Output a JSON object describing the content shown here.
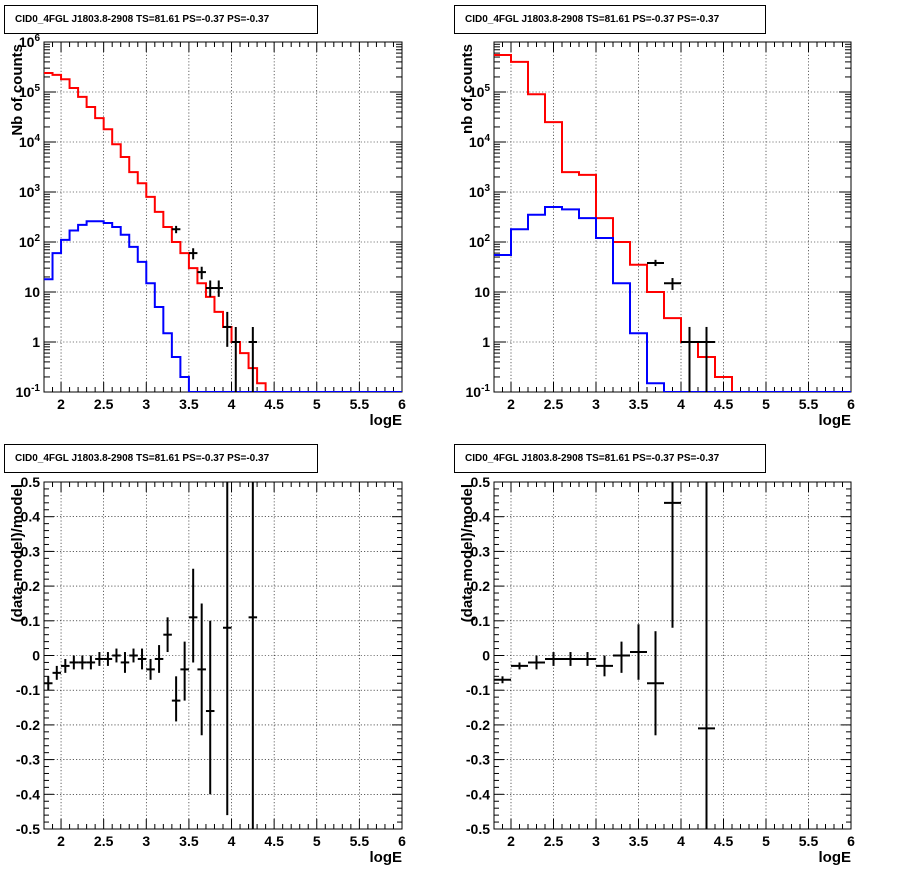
{
  "chart_data": [
    {
      "type": "histogram",
      "title": "CID0_4FGL J1803.8-2908 TS=81.61 PS=-0.37 PS=-0.37",
      "xlabel": "logE",
      "ylabel": "Nb of counts",
      "yscale": "log",
      "xlim": [
        1.8,
        6.0
      ],
      "ylim": [
        0.1,
        1000000
      ],
      "xticks": [
        "2",
        "2.5",
        "3",
        "3.5",
        "4",
        "4.5",
        "5",
        "5.5",
        "6"
      ],
      "yticks": [
        "10^-1",
        "1",
        "10",
        "10^2",
        "10^3",
        "10^4",
        "10^5",
        "10^6"
      ],
      "grid": true,
      "bin_edges": [
        1.8,
        1.9,
        2.0,
        2.1,
        2.2,
        2.3,
        2.4,
        2.5,
        2.6,
        2.7,
        2.8,
        2.9,
        3.0,
        3.1,
        3.2,
        3.3,
        3.4,
        3.5,
        3.6,
        3.7,
        3.8,
        3.9,
        4.0,
        4.1,
        4.2,
        4.3,
        4.4,
        4.5,
        4.6,
        4.7,
        4.8,
        4.9,
        5.0,
        5.1,
        5.2,
        5.3,
        5.4,
        5.5,
        5.6,
        5.7,
        5.8,
        5.9,
        6.0
      ],
      "series": [
        {
          "color": "#ff0000",
          "values": [
            240000,
            220000,
            180000,
            120000,
            80000,
            50000,
            30000,
            18000,
            9000,
            5000,
            2500,
            1500,
            800,
            400,
            200,
            100,
            60,
            30,
            15,
            8,
            4,
            2,
            1,
            0.6,
            0.3,
            0.15,
            0.08,
            0.06,
            0.05,
            0.05,
            0.05,
            0.05,
            0.05,
            0.05,
            0.05,
            0.05,
            0.05,
            0.05,
            0.05,
            0.05,
            0.05,
            0.05
          ]
        },
        {
          "color": "#0000ff",
          "values": [
            18,
            60,
            110,
            170,
            220,
            260,
            260,
            240,
            200,
            140,
            80,
            40,
            15,
            5,
            1.5,
            0.5,
            0.2,
            0.08,
            0.05,
            0.05,
            0.05,
            0.05,
            0.05,
            0.05,
            0.05,
            0.05,
            0.05,
            0.05,
            0.05,
            0.05,
            0.05,
            0.05,
            0.05,
            0.05,
            0.05,
            0.05,
            0.05,
            0.05,
            0.05,
            0.05,
            0.05,
            0.05
          ]
        }
      ],
      "points": [
        {
          "x": 3.35,
          "y": 180,
          "ylo": 150,
          "yhi": 210
        },
        {
          "x": 3.55,
          "y": 60,
          "ylo": 45,
          "yhi": 75
        },
        {
          "x": 3.65,
          "y": 25,
          "ylo": 18,
          "yhi": 32
        },
        {
          "x": 3.75,
          "y": 12,
          "ylo": 8,
          "yhi": 17
        },
        {
          "x": 3.85,
          "y": 12,
          "ylo": 8,
          "yhi": 17
        },
        {
          "x": 3.95,
          "y": 2,
          "ylo": 0.8,
          "yhi": 4
        },
        {
          "x": 4.05,
          "y": 1,
          "ylo": 0.1,
          "yhi": 2
        },
        {
          "x": 4.25,
          "y": 1,
          "ylo": 0.1,
          "yhi": 2
        }
      ]
    },
    {
      "type": "histogram",
      "title": "CID0_4FGL J1803.8-2908 TS=81.61 PS=-0.37 PS=-0.37",
      "xlabel": "logE",
      "ylabel": "nb of counts",
      "yscale": "log",
      "xlim": [
        1.8,
        6.0
      ],
      "ylim": [
        0.1,
        1000000
      ],
      "xticks": [
        "2",
        "2.5",
        "3",
        "3.5",
        "4",
        "4.5",
        "5",
        "5.5",
        "6"
      ],
      "yticks": [
        "10^-1",
        "1",
        "10",
        "10^2",
        "10^3",
        "10^4",
        "10^5"
      ],
      "grid": true,
      "bin_edges": [
        1.8,
        2.0,
        2.2,
        2.4,
        2.6,
        2.8,
        3.0,
        3.2,
        3.4,
        3.6,
        3.8,
        4.0,
        4.2,
        4.4,
        4.6,
        4.8,
        5.0,
        5.2,
        5.4,
        5.6,
        5.8,
        6.0
      ],
      "series": [
        {
          "color": "#ff0000",
          "values": [
            550000,
            400000,
            90000,
            25000,
            2500,
            2200,
            300,
            100,
            35,
            10,
            3,
            1,
            0.5,
            0.2,
            0.05,
            0.05,
            0.05,
            0.05,
            0.05,
            0.05,
            0.05
          ]
        },
        {
          "color": "#0000ff",
          "values": [
            55,
            180,
            350,
            500,
            450,
            300,
            120,
            15,
            1.5,
            0.15,
            0.05,
            0.05,
            0.05,
            0.05,
            0.05,
            0.05,
            0.05,
            0.05,
            0.05,
            0.05,
            0.05
          ]
        }
      ],
      "points": [
        {
          "x": 3.7,
          "y": 38,
          "ylo": 33,
          "yhi": 44
        },
        {
          "x": 3.9,
          "y": 15,
          "ylo": 11,
          "yhi": 19
        },
        {
          "x": 4.1,
          "y": 1,
          "ylo": 0.1,
          "yhi": 2
        },
        {
          "x": 4.3,
          "y": 1,
          "ylo": 0.1,
          "yhi": 2
        }
      ]
    },
    {
      "type": "scatter",
      "title": "CID0_4FGL J1803.8-2908 TS=81.61 PS=-0.37 PS=-0.37",
      "xlabel": "logE",
      "ylabel": "(data-model)/model",
      "yscale": "linear",
      "xlim": [
        1.8,
        6.0
      ],
      "ylim": [
        -0.5,
        0.5
      ],
      "xticks": [
        "2",
        "2.5",
        "3",
        "3.5",
        "4",
        "4.5",
        "5",
        "5.5",
        "6"
      ],
      "yticks": [
        "-0.5",
        "-0.4",
        "-0.3",
        "-0.2",
        "-0.1",
        "0",
        "0.1",
        "0.2",
        "0.3",
        "0.4",
        "0.5"
      ],
      "grid": true,
      "points": [
        {
          "x": 1.85,
          "y": -0.08,
          "ylo": -0.1,
          "yhi": -0.06
        },
        {
          "x": 1.95,
          "y": -0.05,
          "ylo": -0.07,
          "yhi": -0.03
        },
        {
          "x": 2.05,
          "y": -0.03,
          "ylo": -0.05,
          "yhi": -0.01
        },
        {
          "x": 2.15,
          "y": -0.02,
          "ylo": -0.04,
          "yhi": 0.0
        },
        {
          "x": 2.25,
          "y": -0.02,
          "ylo": -0.04,
          "yhi": 0.0
        },
        {
          "x": 2.35,
          "y": -0.02,
          "ylo": -0.04,
          "yhi": 0.0
        },
        {
          "x": 2.45,
          "y": -0.01,
          "ylo": -0.03,
          "yhi": 0.01
        },
        {
          "x": 2.55,
          "y": -0.01,
          "ylo": -0.03,
          "yhi": 0.01
        },
        {
          "x": 2.65,
          "y": 0.0,
          "ylo": -0.02,
          "yhi": 0.02
        },
        {
          "x": 2.75,
          "y": -0.02,
          "ylo": -0.05,
          "yhi": 0.01
        },
        {
          "x": 2.85,
          "y": 0.0,
          "ylo": -0.02,
          "yhi": 0.02
        },
        {
          "x": 2.95,
          "y": -0.01,
          "ylo": -0.04,
          "yhi": 0.02
        },
        {
          "x": 3.05,
          "y": -0.04,
          "ylo": -0.07,
          "yhi": -0.01
        },
        {
          "x": 3.15,
          "y": -0.01,
          "ylo": -0.05,
          "yhi": 0.03
        },
        {
          "x": 3.25,
          "y": 0.06,
          "ylo": 0.01,
          "yhi": 0.11
        },
        {
          "x": 3.35,
          "y": -0.13,
          "ylo": -0.19,
          "yhi": -0.06
        },
        {
          "x": 3.45,
          "y": -0.04,
          "ylo": -0.13,
          "yhi": 0.04
        },
        {
          "x": 3.55,
          "y": 0.11,
          "ylo": -0.02,
          "yhi": 0.25
        },
        {
          "x": 3.65,
          "y": -0.04,
          "ylo": -0.23,
          "yhi": 0.15
        },
        {
          "x": 3.75,
          "y": -0.16,
          "ylo": -0.4,
          "yhi": 0.1
        },
        {
          "x": 3.95,
          "y": 0.08,
          "ylo": -0.46,
          "yhi": 0.5
        },
        {
          "x": 4.25,
          "y": 0.11,
          "ylo": -0.5,
          "yhi": 0.5
        }
      ]
    },
    {
      "type": "scatter",
      "title": "CID0_4FGL J1803.8-2908 TS=81.61 PS=-0.37 PS=-0.37",
      "xlabel": "logE",
      "ylabel": "(data-model)/model",
      "yscale": "linear",
      "xlim": [
        1.8,
        6.0
      ],
      "ylim": [
        -0.5,
        0.5
      ],
      "xticks": [
        "2",
        "2.5",
        "3",
        "3.5",
        "4",
        "4.5",
        "5",
        "5.5",
        "6"
      ],
      "yticks": [
        "-0.5",
        "-0.4",
        "-0.3",
        "-0.2",
        "-0.1",
        "0",
        "0.1",
        "0.2",
        "0.3",
        "0.4",
        "0.5"
      ],
      "grid": true,
      "points": [
        {
          "x": 1.9,
          "y": -0.07,
          "ylo": -0.08,
          "yhi": -0.06
        },
        {
          "x": 2.1,
          "y": -0.03,
          "ylo": -0.04,
          "yhi": -0.02
        },
        {
          "x": 2.3,
          "y": -0.02,
          "ylo": -0.04,
          "yhi": 0.0
        },
        {
          "x": 2.5,
          "y": -0.01,
          "ylo": -0.03,
          "yhi": 0.01
        },
        {
          "x": 2.7,
          "y": -0.01,
          "ylo": -0.03,
          "yhi": 0.01
        },
        {
          "x": 2.9,
          "y": -0.01,
          "ylo": -0.03,
          "yhi": 0.01
        },
        {
          "x": 3.1,
          "y": -0.03,
          "ylo": -0.06,
          "yhi": 0.0
        },
        {
          "x": 3.3,
          "y": 0.0,
          "ylo": -0.05,
          "yhi": 0.04
        },
        {
          "x": 3.5,
          "y": 0.01,
          "ylo": -0.07,
          "yhi": 0.09
        },
        {
          "x": 3.7,
          "y": -0.08,
          "ylo": -0.23,
          "yhi": 0.07
        },
        {
          "x": 3.9,
          "y": 0.44,
          "ylo": 0.08,
          "yhi": 0.5
        },
        {
          "x": 4.3,
          "y": -0.21,
          "ylo": -0.5,
          "yhi": 0.5
        }
      ]
    }
  ]
}
